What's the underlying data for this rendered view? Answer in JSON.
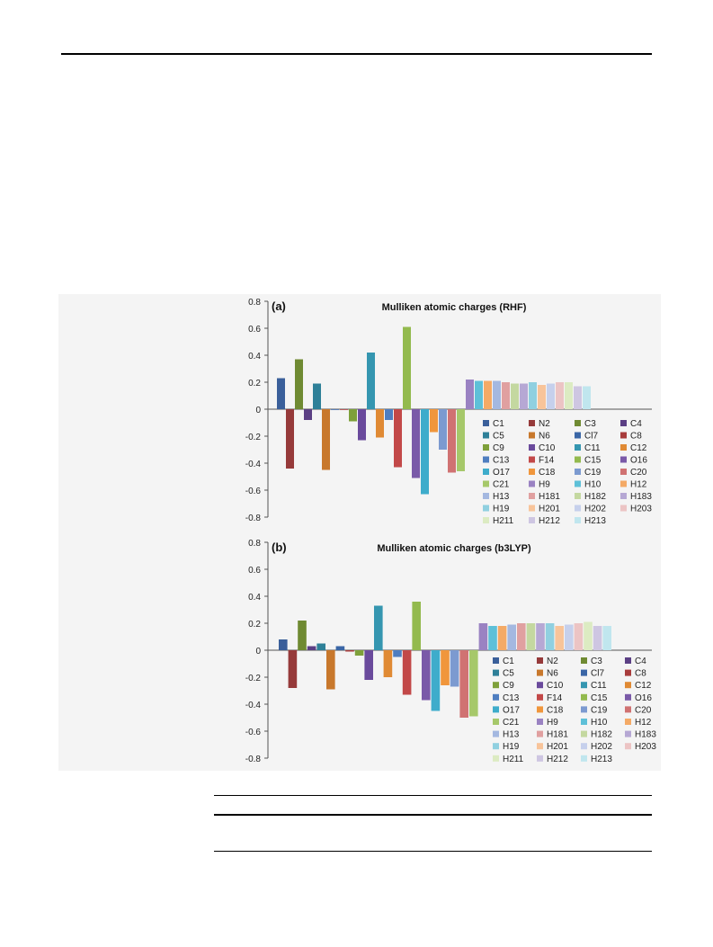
{
  "chart_data": [
    {
      "type": "bar",
      "panel": "(a)",
      "title": "Mulliken atomic charges (RHF)",
      "ylim": [
        -0.8,
        0.8
      ],
      "yticks": [
        "0.8",
        "0.6",
        "0.4",
        "0.2",
        "0",
        "-0.2",
        "-0.4",
        "-0.6",
        "-0.8"
      ],
      "grid": false,
      "legend": "right",
      "series": [
        {
          "name": "C1",
          "value": 0.23,
          "color": "#3a5f9a"
        },
        {
          "name": "N2",
          "value": -0.44,
          "color": "#963a3a"
        },
        {
          "name": "C3",
          "value": 0.37,
          "color": "#6f8a32"
        },
        {
          "name": "C4",
          "value": -0.08,
          "color": "#5b3f84"
        },
        {
          "name": "C5",
          "value": 0.19,
          "color": "#2e8098"
        },
        {
          "name": "N6",
          "value": -0.45,
          "color": "#c8782c"
        },
        {
          "name": "Cl7",
          "value": 0.0,
          "color": "#3a66a6"
        },
        {
          "name": "C8",
          "value": 0.0,
          "color": "#a83c3c"
        },
        {
          "name": "C9",
          "value": -0.09,
          "color": "#7ea03a"
        },
        {
          "name": "C10",
          "value": -0.23,
          "color": "#6a4a9c"
        },
        {
          "name": "C11",
          "value": 0.42,
          "color": "#3596b0"
        },
        {
          "name": "C12",
          "value": -0.21,
          "color": "#e08a34"
        },
        {
          "name": "C13",
          "value": -0.08,
          "color": "#4f7ec0"
        },
        {
          "name": "F14",
          "value": -0.43,
          "color": "#c24848"
        },
        {
          "name": "C15",
          "value": 0.61,
          "color": "#93ba4e"
        },
        {
          "name": "O16",
          "value": -0.51,
          "color": "#7a5aa8"
        },
        {
          "name": "O17",
          "value": -0.63,
          "color": "#3eaccb"
        },
        {
          "name": "C18",
          "value": -0.17,
          "color": "#f0963c"
        },
        {
          "name": "C19",
          "value": -0.3,
          "color": "#7c9ad0"
        },
        {
          "name": "C20",
          "value": -0.47,
          "color": "#d07272"
        },
        {
          "name": "C21",
          "value": -0.46,
          "color": "#a6c86a"
        },
        {
          "name": "H9",
          "value": 0.22,
          "color": "#9a82c2"
        },
        {
          "name": "H10",
          "value": 0.21,
          "color": "#5ec0d8"
        },
        {
          "name": "H12",
          "value": 0.21,
          "color": "#f4aa66"
        },
        {
          "name": "H13",
          "value": 0.21,
          "color": "#a4b8e0"
        },
        {
          "name": "H181",
          "value": 0.2,
          "color": "#e0a0a0"
        },
        {
          "name": "H182",
          "value": 0.19,
          "color": "#c4d8a0"
        },
        {
          "name": "H183",
          "value": 0.19,
          "color": "#b6a8d4"
        },
        {
          "name": "H19",
          "value": 0.2,
          "color": "#90d0e0"
        },
        {
          "name": "H201",
          "value": 0.18,
          "color": "#f8c49a"
        },
        {
          "name": "H202",
          "value": 0.19,
          "color": "#c6d0ec"
        },
        {
          "name": "H203",
          "value": 0.2,
          "color": "#ecc4c4"
        },
        {
          "name": "H211",
          "value": 0.2,
          "color": "#dcebc2"
        },
        {
          "name": "H212",
          "value": 0.17,
          "color": "#cec6e2"
        },
        {
          "name": "H213",
          "value": 0.17,
          "color": "#c0e6ee"
        }
      ]
    },
    {
      "type": "bar",
      "panel": "(b)",
      "title": "Mulliken atomic charges (b3LYP)",
      "ylim": [
        -0.8,
        0.8
      ],
      "yticks": [
        "0.8",
        "0.6",
        "0.4",
        "0.2",
        "0",
        "-0.2",
        "-0.4",
        "-0.6",
        "-0.8"
      ],
      "grid": false,
      "legend": "right",
      "series": [
        {
          "name": "C1",
          "value": 0.08,
          "color": "#3a5f9a"
        },
        {
          "name": "N2",
          "value": -0.28,
          "color": "#963a3a"
        },
        {
          "name": "C3",
          "value": 0.22,
          "color": "#6f8a32"
        },
        {
          "name": "C4",
          "value": 0.03,
          "color": "#5b3f84"
        },
        {
          "name": "C5",
          "value": 0.05,
          "color": "#2e8098"
        },
        {
          "name": "N6",
          "value": -0.29,
          "color": "#c8782c"
        },
        {
          "name": "Cl7",
          "value": 0.03,
          "color": "#3a66a6"
        },
        {
          "name": "C8",
          "value": -0.01,
          "color": "#a83c3c"
        },
        {
          "name": "C9",
          "value": -0.04,
          "color": "#7ea03a"
        },
        {
          "name": "C10",
          "value": -0.22,
          "color": "#6a4a9c"
        },
        {
          "name": "C11",
          "value": 0.33,
          "color": "#3596b0"
        },
        {
          "name": "C12",
          "value": -0.2,
          "color": "#e08a34"
        },
        {
          "name": "C13",
          "value": -0.05,
          "color": "#4f7ec0"
        },
        {
          "name": "F14",
          "value": -0.33,
          "color": "#c24848"
        },
        {
          "name": "C15",
          "value": 0.36,
          "color": "#93ba4e"
        },
        {
          "name": "O16",
          "value": -0.37,
          "color": "#7a5aa8"
        },
        {
          "name": "O17",
          "value": -0.45,
          "color": "#3eaccb"
        },
        {
          "name": "C18",
          "value": -0.26,
          "color": "#f0963c"
        },
        {
          "name": "C19",
          "value": -0.27,
          "color": "#7c9ad0"
        },
        {
          "name": "C20",
          "value": -0.5,
          "color": "#d07272"
        },
        {
          "name": "C21",
          "value": -0.49,
          "color": "#a6c86a"
        },
        {
          "name": "H9",
          "value": 0.2,
          "color": "#9a82c2"
        },
        {
          "name": "H10",
          "value": 0.18,
          "color": "#5ec0d8"
        },
        {
          "name": "H12",
          "value": 0.18,
          "color": "#f4aa66"
        },
        {
          "name": "H13",
          "value": 0.19,
          "color": "#a4b8e0"
        },
        {
          "name": "H181",
          "value": 0.2,
          "color": "#e0a0a0"
        },
        {
          "name": "H182",
          "value": 0.2,
          "color": "#c4d8a0"
        },
        {
          "name": "H183",
          "value": 0.2,
          "color": "#b6a8d4"
        },
        {
          "name": "H19",
          "value": 0.2,
          "color": "#90d0e0"
        },
        {
          "name": "H201",
          "value": 0.18,
          "color": "#f8c49a"
        },
        {
          "name": "H202",
          "value": 0.19,
          "color": "#c6d0ec"
        },
        {
          "name": "H203",
          "value": 0.2,
          "color": "#ecc4c4"
        },
        {
          "name": "H211",
          "value": 0.21,
          "color": "#dcebc2"
        },
        {
          "name": "H212",
          "value": 0.18,
          "color": "#cec6e2"
        },
        {
          "name": "H213",
          "value": 0.18,
          "color": "#c0e6ee"
        }
      ]
    }
  ]
}
